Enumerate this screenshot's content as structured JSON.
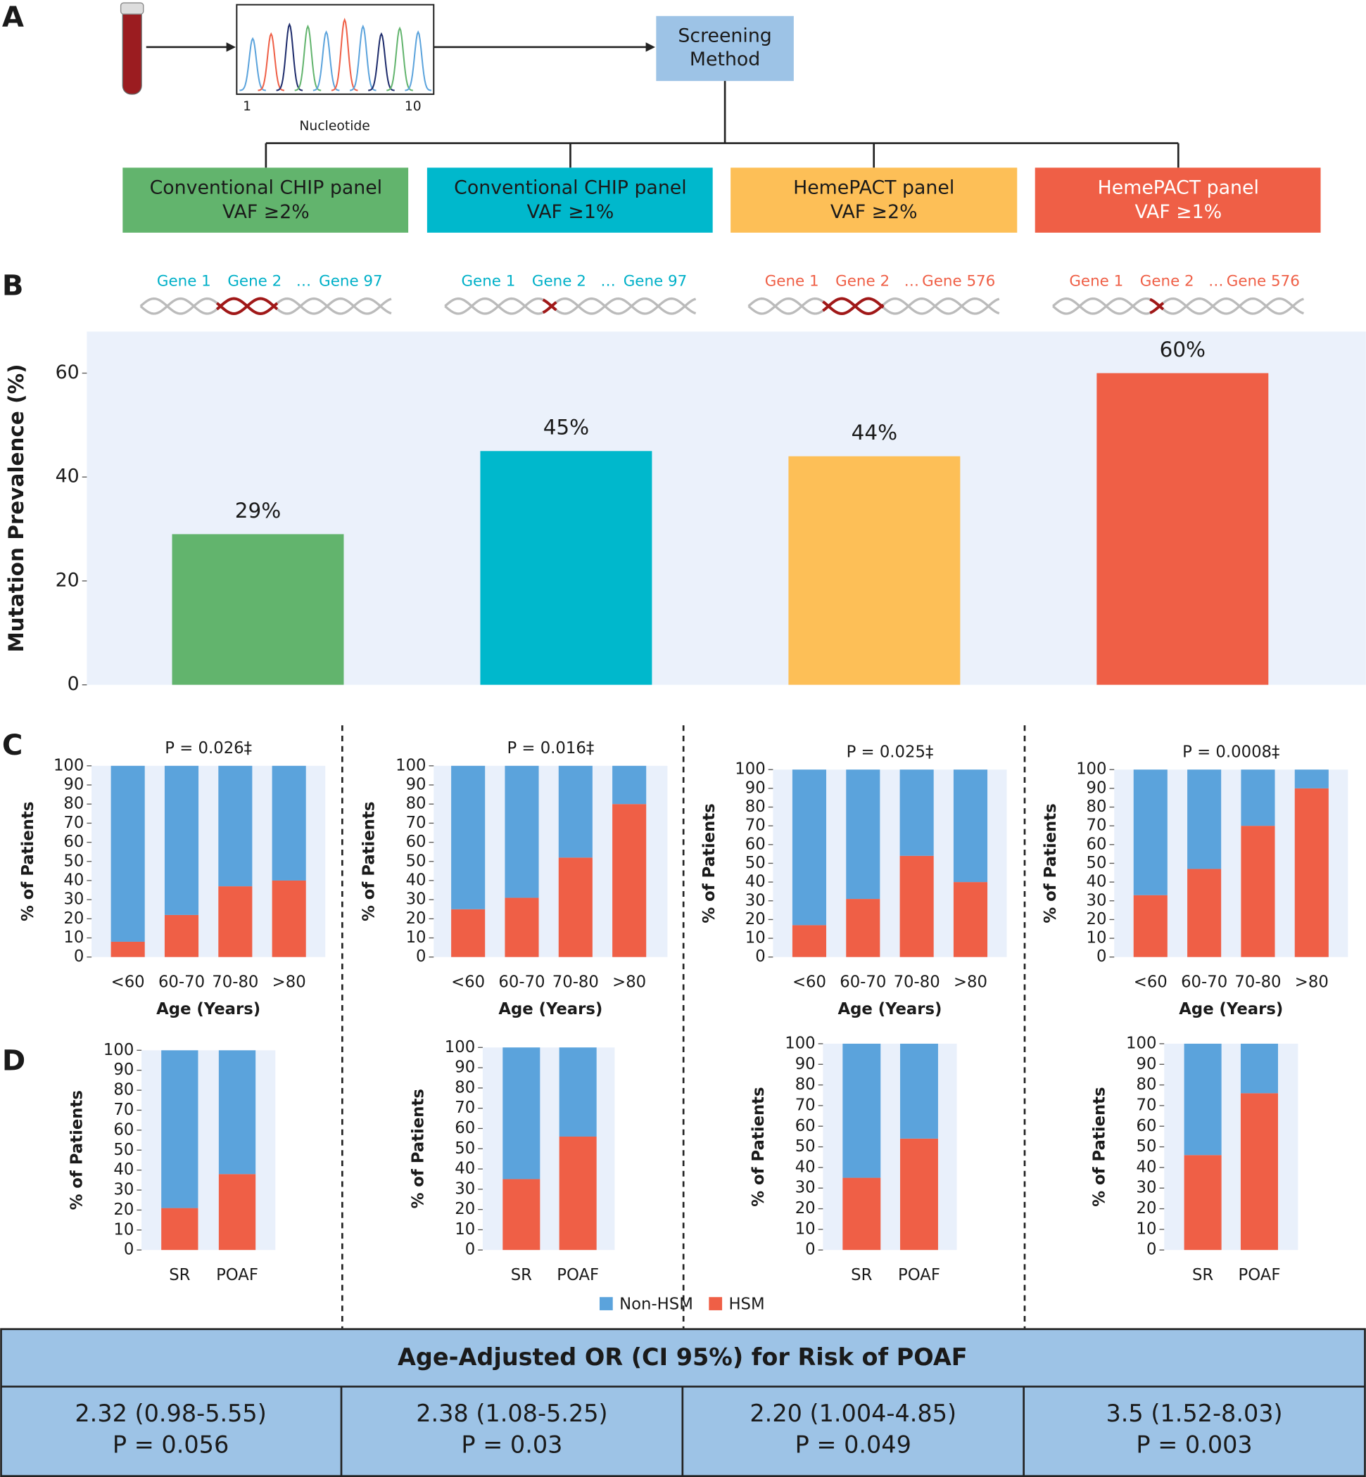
{
  "panel_labels": [
    "A",
    "B",
    "C",
    "D"
  ],
  "diagram": {
    "nucleotide_axis": {
      "start": "1",
      "end": "10",
      "label": "Nucleotide"
    },
    "screening": [
      "Screening",
      "Method"
    ],
    "panels": [
      {
        "line1": "Conventional CHIP panel",
        "line2": "VAF ≥2%",
        "genes": [
          "Gene 1",
          "Gene 2",
          "…",
          "Gene 97"
        ]
      },
      {
        "line1": "Conventional CHIP panel",
        "line2": "VAF ≥1%",
        "genes": [
          "Gene 1",
          "Gene 2",
          "…",
          "Gene 97"
        ]
      },
      {
        "line1": "HemePACT panel",
        "line2": "VAF ≥2%",
        "genes": [
          "Gene 1",
          "Gene 2",
          "…",
          "Gene 576"
        ]
      },
      {
        "line1": "HemePACT panel",
        "line2": "VAF ≥1%",
        "genes": [
          "Gene 1",
          "Gene 2",
          "…",
          "Gene 576"
        ]
      }
    ]
  },
  "chart_data": [
    {
      "type": "bar",
      "ylabel": "Mutation Prevalence (%)",
      "categories": [
        null,
        null,
        null,
        null
      ],
      "values": [
        29,
        45,
        44,
        60
      ],
      "value_labels": [
        "29%",
        "45%",
        "44%",
        "60%"
      ],
      "colors": [
        "#62b46d",
        "#00b8cc",
        "#fdbf57",
        "#ef5f46"
      ],
      "ylim": [
        0,
        68
      ],
      "yticks": [
        0,
        20,
        40,
        60
      ]
    },
    {
      "type": "stacked_bar",
      "title": "P = 0.026‡",
      "xlabel": "Age (Years)",
      "ylabel": "% of Patients",
      "categories": [
        "<60",
        "60-70",
        "70-80",
        ">80"
      ],
      "series": [
        {
          "name": "HSM",
          "color": "#ef5f46",
          "values": [
            8,
            22,
            37,
            40
          ]
        },
        {
          "name": "Non-HSM",
          "color": "#5ba3dc",
          "values": [
            92,
            78,
            63,
            60
          ]
        }
      ],
      "ylim": [
        0,
        100
      ],
      "yticks": [
        0,
        10,
        20,
        30,
        40,
        50,
        60,
        70,
        80,
        90,
        100
      ]
    },
    {
      "type": "stacked_bar",
      "title": "P = 0.016‡",
      "xlabel": "Age (Years)",
      "ylabel": "% of Patients",
      "categories": [
        "<60",
        "60-70",
        "70-80",
        ">80"
      ],
      "series": [
        {
          "color": "#ef5f46",
          "values": [
            25,
            31,
            52,
            80
          ]
        },
        {
          "color": "#5ba3dc",
          "values": [
            75,
            69,
            48,
            20
          ]
        }
      ],
      "ylim": [
        0,
        100
      ],
      "yticks": [
        0,
        10,
        20,
        30,
        40,
        50,
        60,
        70,
        80,
        90,
        100
      ]
    },
    {
      "type": "stacked_bar",
      "title": "P = 0.025‡",
      "xlabel": "Age (Years)",
      "ylabel": "% of Patients",
      "categories": [
        "<60",
        "60-70",
        "70-80",
        ">80"
      ],
      "series": [
        {
          "color": "#ef5f46",
          "values": [
            17,
            31,
            54,
            40
          ]
        },
        {
          "color": "#5ba3dc",
          "values": [
            83,
            69,
            46,
            60
          ]
        }
      ],
      "ylim": [
        0,
        100
      ],
      "yticks": [
        0,
        10,
        20,
        30,
        40,
        50,
        60,
        70,
        80,
        90,
        100
      ]
    },
    {
      "type": "stacked_bar",
      "title": "P = 0.0008‡",
      "xlabel": "Age (Years)",
      "ylabel": "% of Patients",
      "categories": [
        "<60",
        "60-70",
        "70-80",
        ">80"
      ],
      "series": [
        {
          "color": "#ef5f46",
          "values": [
            33,
            47,
            70,
            90
          ]
        },
        {
          "color": "#5ba3dc",
          "values": [
            67,
            53,
            30,
            10
          ]
        }
      ],
      "ylim": [
        0,
        100
      ],
      "yticks": [
        0,
        10,
        20,
        30,
        40,
        50,
        60,
        70,
        80,
        90,
        100
      ]
    },
    {
      "type": "stacked_bar",
      "ylabel": "% of Patients",
      "categories": [
        "SR",
        "POAF"
      ],
      "series": [
        {
          "color": "#ef5f46",
          "values": [
            21,
            38
          ]
        },
        {
          "color": "#5ba3dc",
          "values": [
            79,
            62
          ]
        }
      ],
      "ylim": [
        0,
        100
      ],
      "yticks": [
        0,
        10,
        20,
        30,
        40,
        50,
        60,
        70,
        80,
        90,
        100
      ]
    },
    {
      "type": "stacked_bar",
      "ylabel": "% of Patients",
      "categories": [
        "SR",
        "POAF"
      ],
      "series": [
        {
          "color": "#ef5f46",
          "values": [
            35,
            56
          ]
        },
        {
          "color": "#5ba3dc",
          "values": [
            65,
            44
          ]
        }
      ],
      "ylim": [
        0,
        100
      ],
      "yticks": [
        0,
        10,
        20,
        30,
        40,
        50,
        60,
        70,
        80,
        90,
        100
      ]
    },
    {
      "type": "stacked_bar",
      "ylabel": "% of Patients",
      "categories": [
        "SR",
        "POAF"
      ],
      "series": [
        {
          "color": "#ef5f46",
          "values": [
            35,
            54
          ]
        },
        {
          "color": "#5ba3dc",
          "values": [
            65,
            46
          ]
        }
      ],
      "ylim": [
        0,
        100
      ],
      "yticks": [
        0,
        10,
        20,
        30,
        40,
        50,
        60,
        70,
        80,
        90,
        100
      ]
    },
    {
      "type": "stacked_bar",
      "ylabel": "% of Patients",
      "categories": [
        "SR",
        "POAF"
      ],
      "series": [
        {
          "color": "#ef5f46",
          "values": [
            46,
            76
          ]
        },
        {
          "color": "#5ba3dc",
          "values": [
            54,
            24
          ]
        }
      ],
      "ylim": [
        0,
        100
      ],
      "yticks": [
        0,
        10,
        20,
        30,
        40,
        50,
        60,
        70,
        80,
        90,
        100
      ]
    }
  ],
  "table": {
    "title": "Age-Adjusted OR (CI 95%) for Risk of POAF",
    "cells": [
      [
        "2.32 (0.98-5.55)",
        "P = 0.056"
      ],
      [
        "2.38 (1.08-5.25)",
        "P = 0.03"
      ],
      [
        "2.20 (1.004-4.85)",
        "P = 0.049"
      ],
      [
        "3.5 (1.52-8.03)",
        "P = 0.003"
      ]
    ]
  }
}
